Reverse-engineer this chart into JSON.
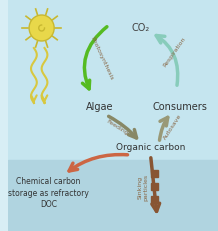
{
  "bg_color_top": "#d8eef5",
  "bg_color_bottom": "#b8dde8",
  "sun_color": "#e8d84a",
  "sun_outline": "#c8b830",
  "light_ray_color": "#d8c840",
  "algae_label": "Algae",
  "consumers_label": "Consumers",
  "organic_carbon_label": "Organic carbon",
  "co2_label": "CO₂",
  "chem_storage_label": "Chemical carbon\nstorage as refractory\nDOC",
  "sinking_label": "Sinking\nparticles",
  "photosynthesis_label": "Photosynthesis",
  "respiration_label": "Respiration",
  "feeding_label": "Feeding",
  "autosave_label": "Autosave",
  "photo_arrow_color": "#55bb22",
  "resp_arrow_color": "#88ccbb",
  "feeding_arrow_color": "#888866",
  "autosave_arrow_color": "#999977",
  "doc_arrow_color": "#cc6644",
  "sinking_arrow_color": "#885533",
  "sinking_particle_color": "#885533",
  "label_color": "#555555",
  "arrow_label_color": "#886644"
}
